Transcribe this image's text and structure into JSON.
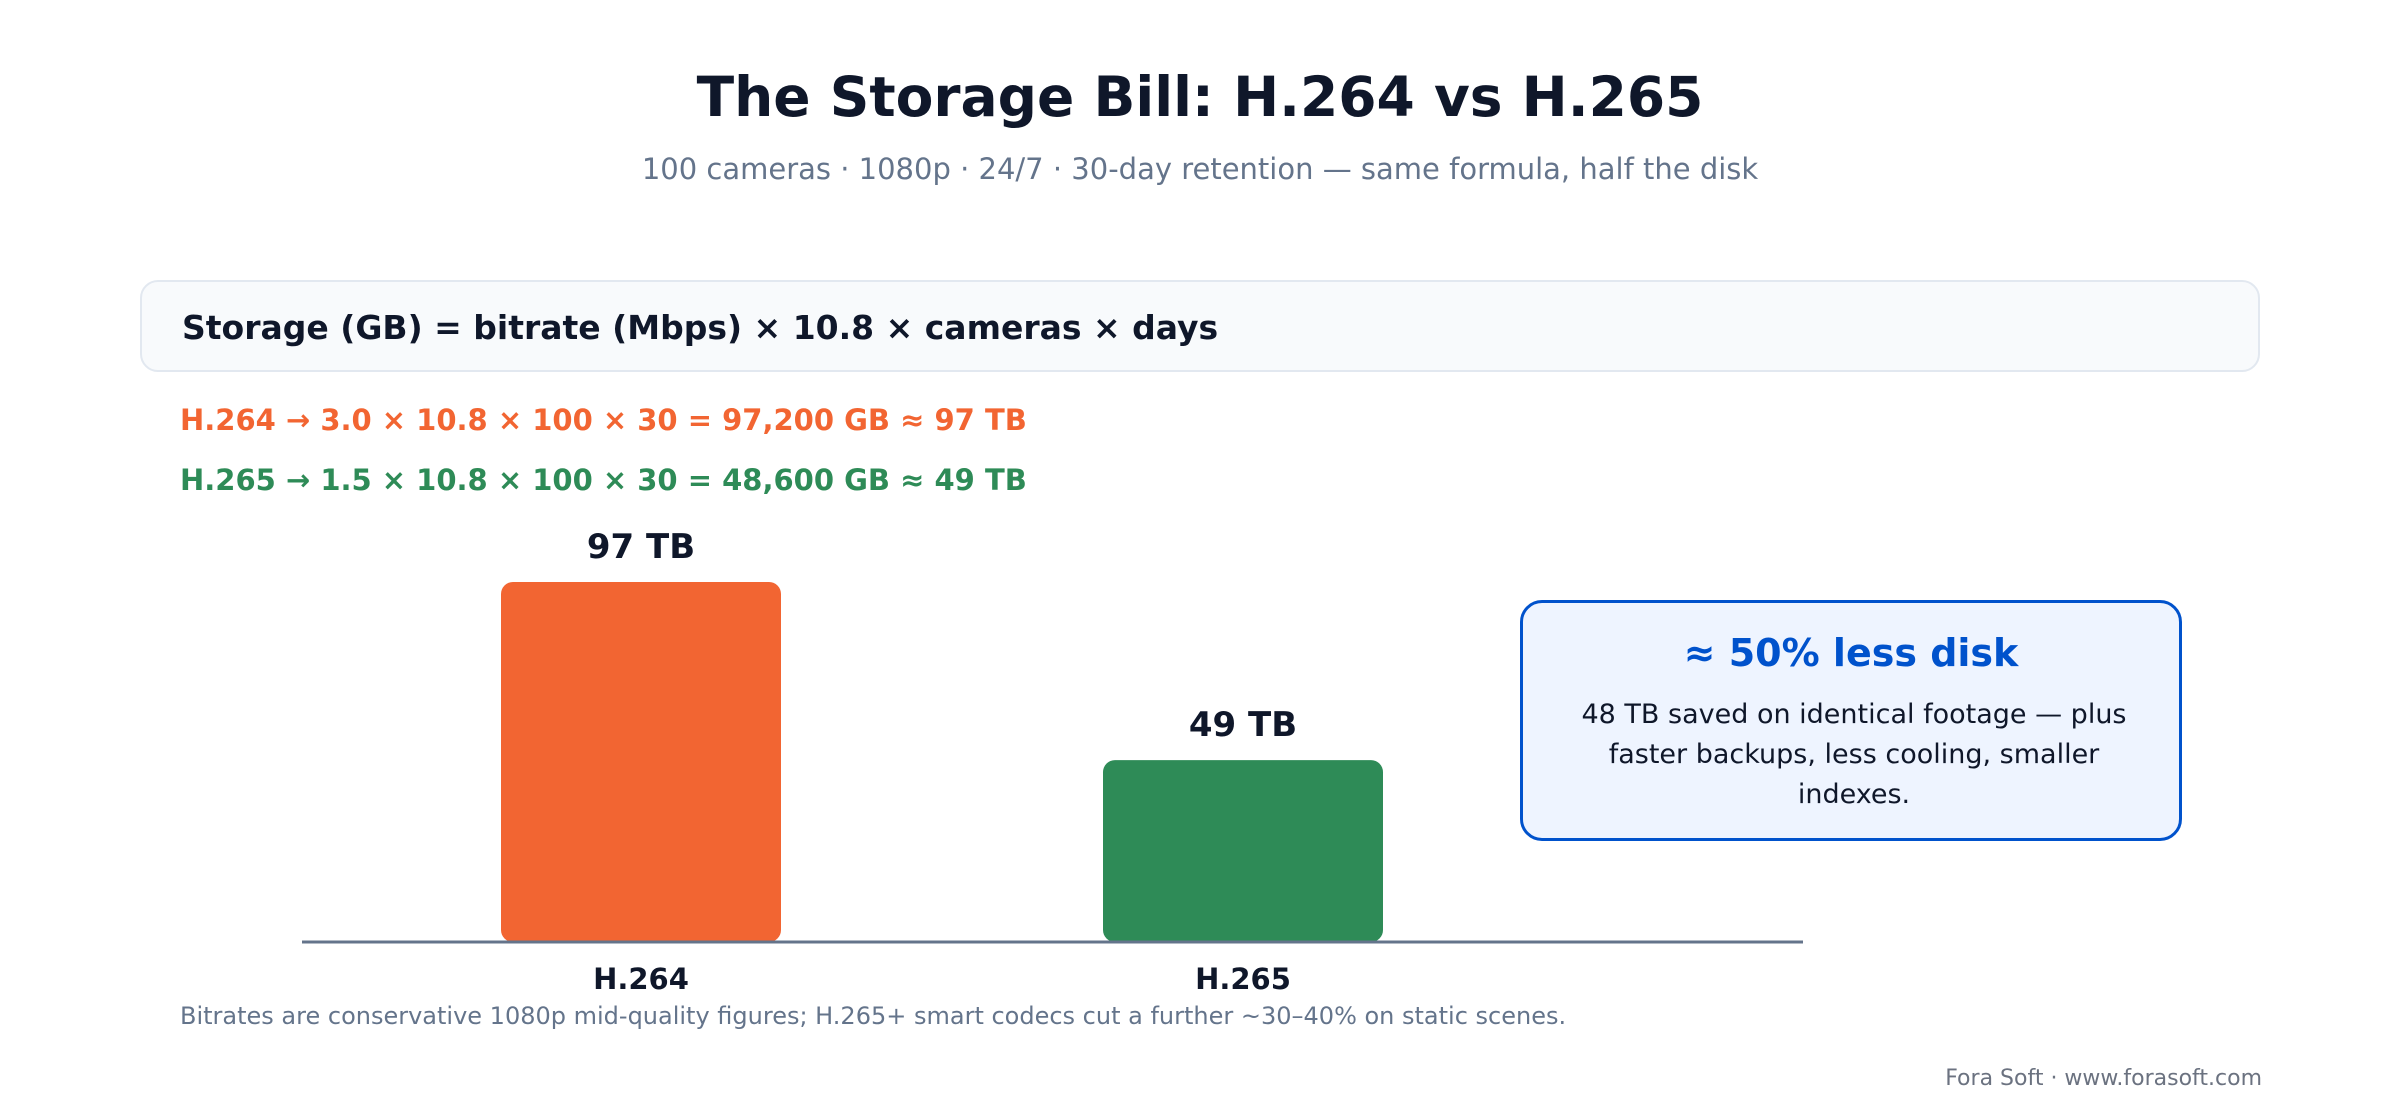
{
  "title": "The Storage Bill: H.264 vs H.265",
  "subtitle": "100 cameras · 1080p · 24/7 · 30-day retention — same formula, half the disk",
  "formula": "Storage (GB) = bitrate (Mbps) × 10.8 × cameras × days",
  "calculations": [
    {
      "label": "H.264 → 3.0 × 10.8 × 100 × 30 = 97,200 GB ≈ 97 TB",
      "color": "#f26532"
    },
    {
      "label": "H.265 → 1.5 × 10.8 × 100 × 30 = 48,600 GB ≈ 49 TB",
      "color": "#2e8b57"
    }
  ],
  "callout": {
    "title": "≈ 50% less disk",
    "body": "48 TB saved on identical footage — plus faster backups, less cooling, smaller indexes."
  },
  "footnote": "Bitrates are conservative 1080p mid-quality figures; H.265+ smart codecs cut a further ~30–40% on static scenes.",
  "credit": "Fora Soft · www.forasoft.com",
  "chart_data": {
    "type": "bar",
    "categories": [
      "H.264",
      "H.265"
    ],
    "values": [
      97,
      49
    ],
    "data_labels": [
      "97 TB",
      "49 TB"
    ],
    "colors": [
      "#f26532",
      "#2e8b57"
    ],
    "unit": "TB",
    "ylim": [
      0,
      97
    ],
    "grid": false,
    "axis_color": "#64748b"
  }
}
